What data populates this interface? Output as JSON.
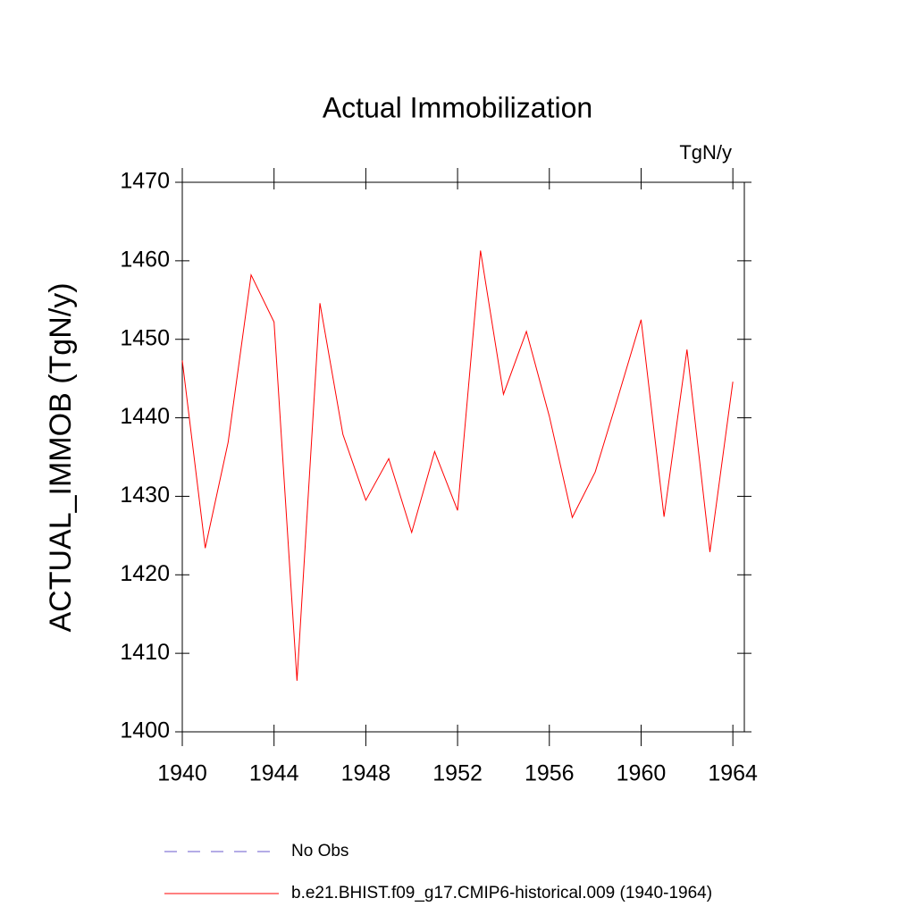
{
  "chart_data": {
    "type": "line",
    "title": "Actual Immobilization",
    "units_label": "TgN/y",
    "y_label": "ACTUAL_IMMOB  (TgN/y)",
    "x": [
      1940,
      1941,
      1942,
      1943,
      1944,
      1945,
      1946,
      1947,
      1948,
      1949,
      1950,
      1951,
      1952,
      1953,
      1954,
      1955,
      1956,
      1957,
      1958,
      1959,
      1960,
      1961,
      1962,
      1963,
      1964
    ],
    "series": [
      {
        "name": "No Obs",
        "color": "#6a5acd",
        "dashed": true,
        "values": [
          null,
          null,
          null,
          null,
          null,
          null,
          null,
          null,
          null,
          null,
          null,
          null,
          null,
          null,
          null,
          null,
          null,
          null,
          null,
          null,
          null,
          null,
          null,
          null,
          null
        ]
      },
      {
        "name": "b.e21.BHIST.f09_g17.CMIP6-historical.009 (1940-1964)",
        "color": "#ff0000",
        "dashed": false,
        "values": [
          1447.3,
          1423.4,
          1436.9,
          1458.2,
          1452.2,
          1406.5,
          1454.6,
          1437.9,
          1429.5,
          1434.8,
          1425.4,
          1435.7,
          1428.2,
          1461.3,
          1443.0,
          1451.0,
          1440.2,
          1427.3,
          1433.1,
          1442.7,
          1452.5,
          1427.4,
          1448.7,
          1422.9,
          1444.6
        ]
      }
    ],
    "xlim": [
      1940,
      1964.5
    ],
    "xticks": [
      1940,
      1944,
      1948,
      1952,
      1956,
      1960,
      1964
    ],
    "ylim": [
      1400,
      1470
    ],
    "yticks": [
      1400,
      1410,
      1420,
      1430,
      1440,
      1450,
      1460,
      1470
    ]
  }
}
